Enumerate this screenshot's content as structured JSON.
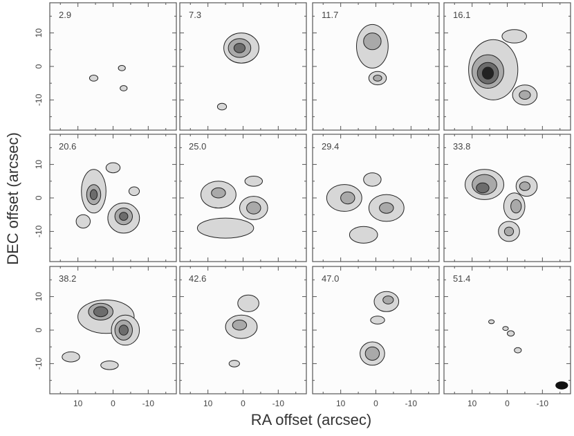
{
  "chart_data": {
    "type": "contour",
    "title": "",
    "xlabel": "RA offset (arcsec)",
    "ylabel": "DEC offset (arcsec)",
    "x_reversed": true,
    "xlim": [
      18,
      -18
    ],
    "ylim": [
      -19,
      19
    ],
    "x_ticks": [
      "10",
      "0",
      "-10"
    ],
    "y_ticks": [
      "10",
      "0",
      "-10"
    ],
    "grid": false,
    "layout": {
      "rows": 3,
      "cols": 4
    },
    "panels": [
      {
        "label": "2.9",
        "blobs": [
          {
            "x": 5.5,
            "y": -3.5,
            "rx": 1.2,
            "ry": 0.9,
            "level": 1
          },
          {
            "x": -2.5,
            "y": -0.5,
            "rx": 1.0,
            "ry": 0.8,
            "level": 1
          },
          {
            "x": -3.0,
            "y": -6.5,
            "rx": 1.0,
            "ry": 0.8,
            "level": 1
          }
        ]
      },
      {
        "label": "7.3",
        "blobs": [
          {
            "x": 0.5,
            "y": 5.5,
            "rx": 5.0,
            "ry": 4.5,
            "level": 1
          },
          {
            "x": 1.0,
            "y": 5.5,
            "rx": 3.2,
            "ry": 2.8,
            "level": 2
          },
          {
            "x": 1.0,
            "y": 5.5,
            "rx": 1.6,
            "ry": 1.4,
            "level": 3
          },
          {
            "x": 6.0,
            "y": -12.0,
            "rx": 1.3,
            "ry": 1.0,
            "level": 1
          }
        ]
      },
      {
        "label": "11.7",
        "blobs": [
          {
            "x": 1.0,
            "y": 6.0,
            "rx": 4.5,
            "ry": 6.5,
            "level": 1
          },
          {
            "x": 1.0,
            "y": 7.5,
            "rx": 2.5,
            "ry": 2.5,
            "level": 2
          },
          {
            "x": -0.5,
            "y": -3.5,
            "rx": 2.5,
            "ry": 2.0,
            "level": 1
          },
          {
            "x": -0.5,
            "y": -3.5,
            "rx": 1.2,
            "ry": 0.9,
            "level": 2
          }
        ]
      },
      {
        "label": "16.1",
        "blobs": [
          {
            "x": 4.0,
            "y": -1.0,
            "rx": 7.0,
            "ry": 9.0,
            "level": 1
          },
          {
            "x": 5.5,
            "y": -1.5,
            "rx": 4.5,
            "ry": 5.0,
            "level": 2
          },
          {
            "x": 5.5,
            "y": -2.0,
            "rx": 3.0,
            "ry": 3.2,
            "level": 3
          },
          {
            "x": 5.5,
            "y": -2.0,
            "rx": 1.6,
            "ry": 1.8,
            "level": 4
          },
          {
            "x": -5.0,
            "y": -8.5,
            "rx": 3.5,
            "ry": 3.0,
            "level": 1
          },
          {
            "x": -5.0,
            "y": -8.5,
            "rx": 1.6,
            "ry": 1.3,
            "level": 2
          },
          {
            "x": -2.0,
            "y": 9.0,
            "rx": 3.5,
            "ry": 2.0,
            "level": 1
          }
        ]
      },
      {
        "label": "20.6",
        "blobs": [
          {
            "x": 5.5,
            "y": 2.0,
            "rx": 3.5,
            "ry": 6.5,
            "level": 1
          },
          {
            "x": 5.5,
            "y": 1.0,
            "rx": 2.0,
            "ry": 3.0,
            "level": 2
          },
          {
            "x": 5.5,
            "y": 1.0,
            "rx": 1.0,
            "ry": 1.5,
            "level": 3
          },
          {
            "x": -3.0,
            "y": -6.0,
            "rx": 4.5,
            "ry": 4.5,
            "level": 1
          },
          {
            "x": -3.0,
            "y": -5.5,
            "rx": 2.5,
            "ry": 2.5,
            "level": 2
          },
          {
            "x": -3.0,
            "y": -5.5,
            "rx": 1.2,
            "ry": 1.2,
            "level": 3
          },
          {
            "x": 8.5,
            "y": -7.0,
            "rx": 2.0,
            "ry": 2.0,
            "level": 1
          },
          {
            "x": 0.0,
            "y": 9.0,
            "rx": 2.0,
            "ry": 1.5,
            "level": 1
          },
          {
            "x": -6.0,
            "y": 2.0,
            "rx": 1.5,
            "ry": 1.3,
            "level": 1
          }
        ]
      },
      {
        "label": "25.0",
        "blobs": [
          {
            "x": 7.0,
            "y": 1.0,
            "rx": 5.0,
            "ry": 4.0,
            "level": 1
          },
          {
            "x": 7.0,
            "y": 1.5,
            "rx": 2.0,
            "ry": 1.5,
            "level": 2
          },
          {
            "x": -3.0,
            "y": -3.0,
            "rx": 4.0,
            "ry": 3.5,
            "level": 1
          },
          {
            "x": -3.0,
            "y": -3.0,
            "rx": 2.0,
            "ry": 1.8,
            "level": 2
          },
          {
            "x": 5.0,
            "y": -9.0,
            "rx": 8.0,
            "ry": 3.0,
            "level": 1
          },
          {
            "x": -3.0,
            "y": 5.0,
            "rx": 2.5,
            "ry": 1.5,
            "level": 1
          }
        ]
      },
      {
        "label": "29.4",
        "blobs": [
          {
            "x": 9.0,
            "y": 0.0,
            "rx": 5.0,
            "ry": 4.0,
            "level": 1
          },
          {
            "x": 8.0,
            "y": 0.0,
            "rx": 2.0,
            "ry": 1.8,
            "level": 2
          },
          {
            "x": -3.0,
            "y": -3.0,
            "rx": 5.0,
            "ry": 4.0,
            "level": 1
          },
          {
            "x": -3.0,
            "y": -3.0,
            "rx": 2.0,
            "ry": 1.6,
            "level": 2
          },
          {
            "x": 1.0,
            "y": 5.5,
            "rx": 2.5,
            "ry": 2.0,
            "level": 1
          },
          {
            "x": 3.5,
            "y": -11.0,
            "rx": 4.0,
            "ry": 2.5,
            "level": 1
          }
        ]
      },
      {
        "label": "33.8",
        "blobs": [
          {
            "x": 6.5,
            "y": 4.0,
            "rx": 5.5,
            "ry": 4.5,
            "level": 1
          },
          {
            "x": 6.5,
            "y": 4.0,
            "rx": 3.5,
            "ry": 3.0,
            "level": 2
          },
          {
            "x": 7.0,
            "y": 3.0,
            "rx": 1.8,
            "ry": 1.5,
            "level": 3
          },
          {
            "x": -5.5,
            "y": 3.5,
            "rx": 3.0,
            "ry": 3.0,
            "level": 1
          },
          {
            "x": -5.0,
            "y": 3.5,
            "rx": 1.5,
            "ry": 1.3,
            "level": 2
          },
          {
            "x": -2.0,
            "y": -2.5,
            "rx": 3.0,
            "ry": 4.0,
            "level": 1
          },
          {
            "x": -2.5,
            "y": -2.5,
            "rx": 1.5,
            "ry": 2.0,
            "level": 2
          },
          {
            "x": -0.5,
            "y": -10.0,
            "rx": 3.0,
            "ry": 3.0,
            "level": 1
          },
          {
            "x": -0.5,
            "y": -10.0,
            "rx": 1.3,
            "ry": 1.3,
            "level": 2
          }
        ]
      },
      {
        "label": "38.2",
        "blobs": [
          {
            "x": 2.0,
            "y": 4.0,
            "rx": 8.0,
            "ry": 5.0,
            "level": 1
          },
          {
            "x": 3.5,
            "y": 5.5,
            "rx": 3.5,
            "ry": 2.5,
            "level": 2
          },
          {
            "x": 3.5,
            "y": 5.5,
            "rx": 2.0,
            "ry": 1.5,
            "level": 3
          },
          {
            "x": -3.5,
            "y": 0.0,
            "rx": 4.0,
            "ry": 4.5,
            "level": 1
          },
          {
            "x": -3.0,
            "y": 0.0,
            "rx": 2.5,
            "ry": 3.0,
            "level": 2
          },
          {
            "x": -3.0,
            "y": 0.0,
            "rx": 1.3,
            "ry": 1.5,
            "level": 3
          },
          {
            "x": 12.0,
            "y": -8.0,
            "rx": 2.5,
            "ry": 1.5,
            "level": 1
          },
          {
            "x": 1.0,
            "y": -10.5,
            "rx": 2.5,
            "ry": 1.3,
            "level": 1
          }
        ]
      },
      {
        "label": "42.6",
        "blobs": [
          {
            "x": 0.5,
            "y": 1.0,
            "rx": 4.5,
            "ry": 3.5,
            "level": 1
          },
          {
            "x": 1.0,
            "y": 1.5,
            "rx": 2.0,
            "ry": 1.5,
            "level": 2
          },
          {
            "x": -1.5,
            "y": 8.0,
            "rx": 3.0,
            "ry": 2.5,
            "level": 1
          },
          {
            "x": 2.5,
            "y": -10.0,
            "rx": 1.5,
            "ry": 1.0,
            "level": 1
          }
        ]
      },
      {
        "label": "47.0",
        "blobs": [
          {
            "x": -3.0,
            "y": 8.5,
            "rx": 3.5,
            "ry": 3.0,
            "level": 1
          },
          {
            "x": -3.5,
            "y": 9.0,
            "rx": 1.5,
            "ry": 1.2,
            "level": 2
          },
          {
            "x": 1.0,
            "y": -7.0,
            "rx": 3.5,
            "ry": 3.5,
            "level": 1
          },
          {
            "x": 1.0,
            "y": -7.0,
            "rx": 2.0,
            "ry": 2.0,
            "level": 2
          },
          {
            "x": -0.5,
            "y": 3.0,
            "rx": 2.0,
            "ry": 1.2,
            "level": 1
          }
        ]
      },
      {
        "label": "51.4",
        "blobs": [
          {
            "x": -1.0,
            "y": -1.0,
            "rx": 1.0,
            "ry": 0.8,
            "level": 1
          },
          {
            "x": 0.5,
            "y": 0.5,
            "rx": 0.8,
            "ry": 0.6,
            "level": 1
          },
          {
            "x": -3.0,
            "y": -6.0,
            "rx": 1.0,
            "ry": 0.8,
            "level": 1
          },
          {
            "x": 4.5,
            "y": 2.5,
            "rx": 0.8,
            "ry": 0.6,
            "level": 1
          }
        ]
      }
    ],
    "beam": {
      "x": -15.5,
      "y": -16.5,
      "rx": 1.8,
      "ry": 1.2
    },
    "contour_fill_levels": [
      "#d7d7d7",
      "#a9a9a9",
      "#6c6c6c",
      "#232323"
    ]
  }
}
